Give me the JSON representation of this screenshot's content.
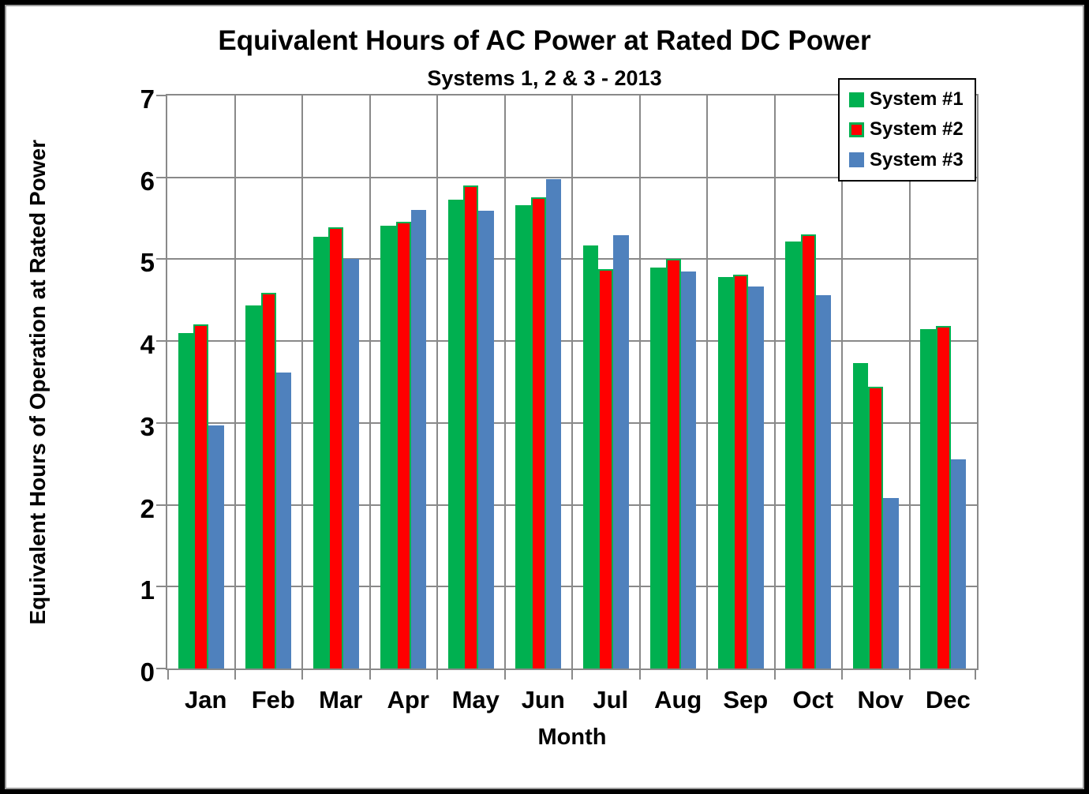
{
  "page": {
    "background": "#FFFFFF",
    "frame_border_color": "#000000",
    "frame_inner_line_color": "#9B9B9B"
  },
  "chart_data": {
    "type": "bar",
    "title": "Equivalent Hours of AC Power at Rated DC Power",
    "subtitle": "Systems 1, 2 & 3 - 2013",
    "xlabel": "Month",
    "ylabel": "Equivalent Hours of Operation at Rated Power",
    "categories": [
      "Jan",
      "Feb",
      "Mar",
      "Apr",
      "May",
      "Jun",
      "Jul",
      "Aug",
      "Sep",
      "Oct",
      "Nov",
      "Dec"
    ],
    "series": [
      {
        "name": "System #1",
        "color": "#00B050",
        "values": [
          4.1,
          4.44,
          5.27,
          5.41,
          5.73,
          5.66,
          5.17,
          4.9,
          4.78,
          5.22,
          3.73,
          4.15
        ]
      },
      {
        "name": "System #2",
        "color": "#FF0000",
        "border_color": "#00B050",
        "values": [
          4.2,
          4.59,
          5.39,
          5.46,
          5.9,
          5.76,
          4.88,
          5.0,
          4.81,
          5.3,
          3.44,
          4.18
        ]
      },
      {
        "name": "System #3",
        "color": "#4F81BD",
        "values": [
          2.97,
          3.62,
          5.0,
          5.6,
          5.59,
          5.98,
          5.29,
          4.85,
          4.67,
          4.56,
          2.08,
          2.56
        ]
      }
    ],
    "ylim": [
      0,
      7
    ],
    "yticks": [
      0,
      1,
      2,
      3,
      4,
      5,
      6,
      7
    ],
    "grid": true,
    "gridline_color": "#898989",
    "legend_position": "top-right",
    "bar_group_width_ratio": 0.68
  }
}
